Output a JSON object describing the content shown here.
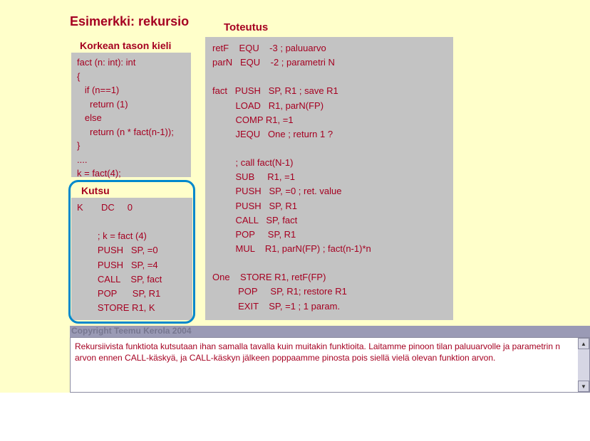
{
  "title": "Esimerkki: rekursio",
  "labels": {
    "toteutus": "Toteutus",
    "korkean": "Korkean tason kieli",
    "kutsu": "Kutsu"
  },
  "high_level_code": [
    "fact (n: int): int",
    "{",
    "   if (n==1)",
    "     return (1)",
    "   else",
    "     return (n * fact(n-1));",
    "}",
    "....",
    "k = fact(4);"
  ],
  "kutsu_code": "K       DC     0\n\n        ; k = fact (4)\n        PUSH   SP, =0\n        PUSH   SP, =4\n        CALL    SP, fact\n        POP      SP, R1\n        STORE R1, K",
  "toteutus_code": "retF    EQU    -3 ; paluuarvo\nparN   EQU    -2 ; parametri N\n\nfact   PUSH   SP, R1 ; save R1\n         LOAD   R1, parN(FP)\n         COMP R1, =1\n         JEQU   One ; return 1 ?\n\n         ; call fact(N-1)\n         SUB     R1, =1\n         PUSH   SP, =0 ; ret. value\n         PUSH   SP, R1\n         CALL   SP, fact\n         POP     SP, R1\n         MUL    R1, parN(FP) ; fact(n-1)*n\n\nOne    STORE R1, retF(FP)\n          POP     SP, R1; restore R1\n          EXIT    SP, =1 ; 1 param.",
  "copyright": "Copyright Teemu Kerola 2004",
  "explanation": "Rekursiivista funktiota kutsutaan ihan samalla tavalla kuin muitakin funktioita. Laitamme pinoon tilan paluuarvolle ja parametrin n arvon ennen CALL-käskyä, ja CALL-käskyn jälkeen poppaamme pinosta pois siellä vielä olevan funktion arvon.",
  "colors": {
    "slide_bg": "#ffffca",
    "box_bg": "#c3c3c3",
    "text": "#a50021",
    "outline": "#0088cc",
    "bar_bg": "#9a9ab5"
  }
}
